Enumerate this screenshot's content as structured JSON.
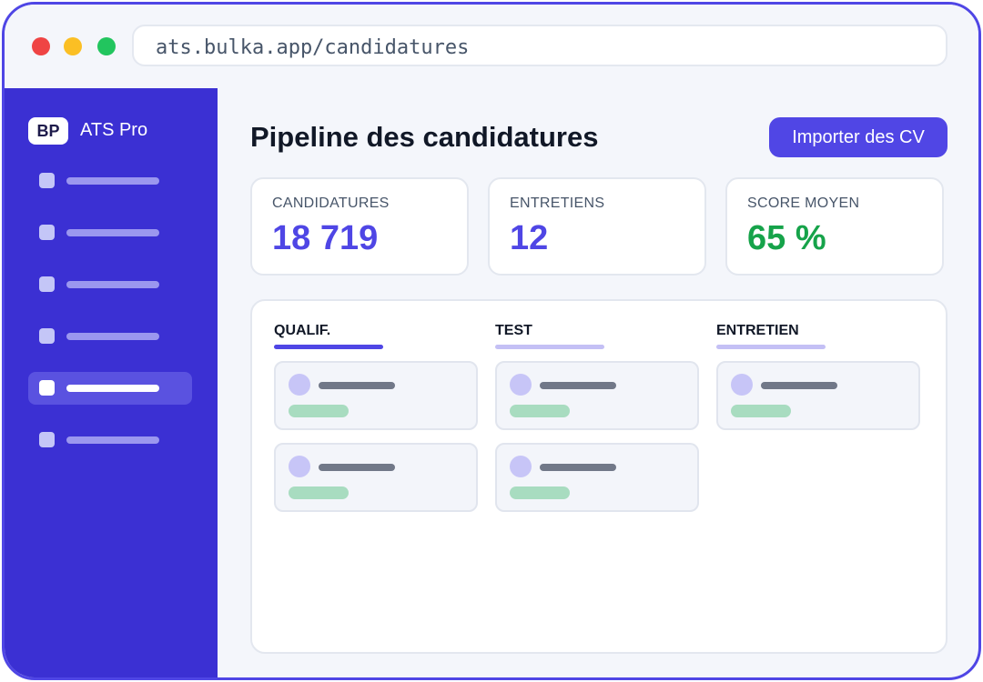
{
  "browser": {
    "url": "ats.bulka.app/candidatures"
  },
  "sidebar": {
    "logo_text": "BP",
    "brand": "ATS Pro",
    "active_index": 4,
    "item_count": 6
  },
  "main": {
    "title": "Pipeline des candidatures",
    "primary_button": "Importer des CV",
    "kpis": [
      {
        "label": "CANDIDATURES",
        "value": "18 719",
        "color": "#4f46e5"
      },
      {
        "label": "ENTRETIENS",
        "value": "12",
        "color": "#4f46e5"
      },
      {
        "label": "SCORE MOYEN",
        "value": "65 %",
        "color": "#16a34a"
      }
    ],
    "board": {
      "columns": [
        {
          "label": "QUALIF.",
          "cards": 2,
          "active": true
        },
        {
          "label": "TEST",
          "cards": 2,
          "active": false
        },
        {
          "label": "ENTRETIEN",
          "cards": 1,
          "active": false
        }
      ]
    }
  },
  "colors": {
    "accent": "#4f46e5",
    "sidebar": "#3b30d3",
    "success": "#16a34a",
    "column_line_active": "#4f46e5",
    "column_line_inactive": "#c4c0f5"
  }
}
